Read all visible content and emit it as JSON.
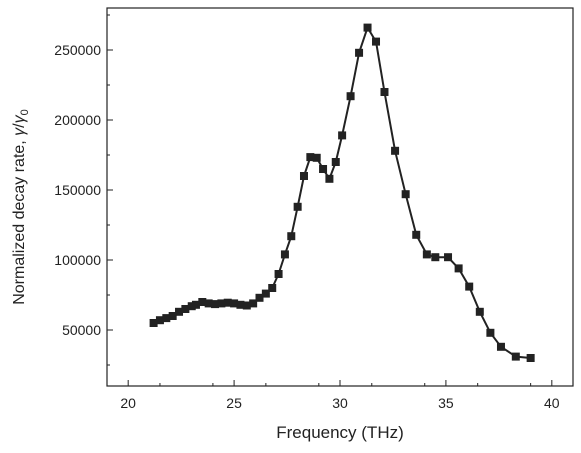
{
  "chart_data": {
    "type": "line",
    "title": "",
    "xlabel": "Frequency (THz)",
    "ylabel": "Normalized decay rate, γ/γ₀",
    "ylabel_main": "Normalized decay rate, ",
    "ylabel_gamma": "γ",
    "ylabel_slash": "/",
    "ylabel_gamma0": "γ",
    "ylabel_sub0": "0",
    "xlim": [
      19,
      41
    ],
    "ylim": [
      10000,
      280000
    ],
    "x_ticks": [
      20,
      25,
      30,
      35,
      40
    ],
    "x_tick_labels": [
      "20",
      "25",
      "30",
      "35",
      "40"
    ],
    "y_ticks": [
      50000,
      100000,
      150000,
      200000,
      250000
    ],
    "y_tick_labels": [
      "50000",
      "100000",
      "150000",
      "200000",
      "250000"
    ],
    "grid": false,
    "legend": "none",
    "marker": "square",
    "color": "#222222",
    "series": [
      {
        "x": [
          21.2,
          21.5,
          21.8,
          22.1,
          22.4,
          22.7,
          23.0,
          23.2,
          23.5,
          23.8,
          24.1,
          24.4,
          24.7,
          25.0,
          25.3,
          25.6,
          25.9,
          26.2,
          26.5,
          26.8,
          27.1,
          27.4,
          27.7,
          28.0,
          28.3,
          28.6,
          28.9,
          29.2,
          29.5,
          29.8,
          30.1,
          30.5,
          30.9,
          31.3,
          31.7,
          32.1,
          32.6,
          33.1,
          33.6,
          34.1,
          34.5,
          35.1,
          35.6,
          36.1,
          36.6,
          37.1,
          37.6,
          38.3,
          39.0
        ],
        "y": [
          55000,
          57000,
          58500,
          60000,
          63000,
          65000,
          67000,
          68000,
          70000,
          69000,
          68500,
          69000,
          69500,
          69000,
          68000,
          67500,
          69000,
          73000,
          76000,
          80000,
          90000,
          104000,
          117000,
          138000,
          160000,
          173500,
          173000,
          165000,
          158000,
          170000,
          189000,
          217000,
          248000,
          266000,
          256000,
          220000,
          178000,
          147000,
          118000,
          104000,
          102000,
          102000,
          94000,
          81000,
          63000,
          48000,
          38000,
          31000,
          30000
        ]
      }
    ]
  }
}
